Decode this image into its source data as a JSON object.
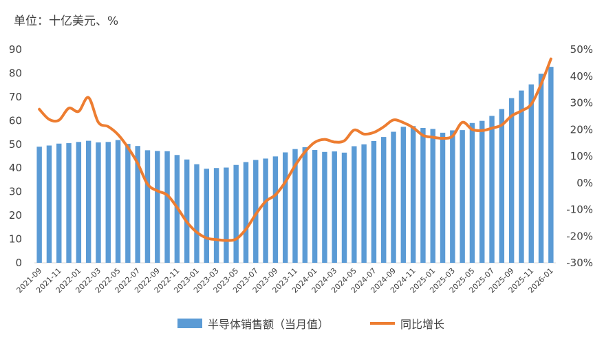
{
  "unit_label": "单位：十亿美元、%",
  "chart_data": {
    "type": "bar+line",
    "categories": [
      "2021-09",
      "2021-10",
      "2021-11",
      "2021-12",
      "2022-01",
      "2022-02",
      "2022-03",
      "2022-04",
      "2022-05",
      "2022-06",
      "2022-07",
      "2022-08",
      "2022-09",
      "2022-10",
      "2022-11",
      "2022-12",
      "2023-01",
      "2023-02",
      "2023-03",
      "2023-04",
      "2023-05",
      "2023-06",
      "2023-07",
      "2023-08",
      "2023-09",
      "2023-10",
      "2023-11",
      "2023-12",
      "2024-01",
      "2024-02",
      "2024-03",
      "2024-04",
      "2024-05",
      "2024-06",
      "2024-07",
      "2024-08",
      "2024-09",
      "2024-10",
      "2024-11",
      "2024-12",
      "2025-01",
      "2025-02",
      "2025-03",
      "2025-04",
      "2025-05",
      "2025-06",
      "2025-07",
      "2025-08",
      "2025-09",
      "2025-10",
      "2025-11",
      "2025-12",
      "2026-01"
    ],
    "x_tick_labels": [
      "2021-09",
      "2021-11",
      "2022-01",
      "2022-03",
      "2022-05",
      "2022-07",
      "2022-09",
      "2022-11",
      "2023-01",
      "2023-03",
      "2023-05",
      "2023-07",
      "2023-09",
      "2023-11",
      "2024-01",
      "2024-03",
      "2024-05",
      "2024-07",
      "2024-09",
      "2024-11",
      "2025-01",
      "2025-03",
      "2025-05",
      "2025-07",
      "2025-09",
      "2025-11",
      "2026-01"
    ],
    "series": [
      {
        "name": "半导体销售额（当月值）",
        "type": "bar",
        "axis": "left",
        "color": "#5b9bd5",
        "values": [
          49.0,
          49.5,
          50.3,
          50.5,
          51.0,
          51.5,
          50.8,
          51.0,
          51.8,
          50.2,
          49.3,
          47.5,
          47.2,
          47.1,
          45.5,
          43.6,
          41.6,
          39.7,
          40.0,
          40.2,
          41.3,
          42.5,
          43.4,
          44.0,
          44.9,
          46.6,
          48.0,
          48.8,
          47.6,
          46.8,
          47.0,
          46.5,
          49.2,
          50.0,
          51.4,
          53.1,
          55.3,
          57.4,
          57.7,
          56.9,
          56.5,
          54.9,
          55.9,
          56.0,
          59.0,
          59.9,
          62.0,
          64.9,
          69.5,
          72.7,
          75.3,
          79.8,
          82.7
        ]
      },
      {
        "name": "同比增长",
        "type": "line",
        "axis": "right",
        "color": "#ed7d31",
        "values": [
          27.6,
          23.8,
          23.5,
          28.0,
          26.8,
          32.0,
          22.7,
          21.1,
          18.1,
          13.3,
          7.3,
          -0.5,
          -3.0,
          -4.6,
          -9.2,
          -14.7,
          -18.5,
          -20.7,
          -21.3,
          -21.6,
          -21.1,
          -17.4,
          -11.8,
          -7.0,
          -4.5,
          0.3,
          6.5,
          11.6,
          15.2,
          16.3,
          15.3,
          15.8,
          19.8,
          18.3,
          18.9,
          21.0,
          23.6,
          22.6,
          20.7,
          17.8,
          17.1,
          16.7,
          17.5,
          22.7,
          20.0,
          19.6,
          20.5,
          21.7,
          25.1,
          27.0,
          29.5,
          37.0,
          46.5
        ]
      }
    ],
    "ylim_left": [
      0,
      90
    ],
    "yticks_left": [
      "0",
      "10",
      "20",
      "30",
      "40",
      "50",
      "60",
      "70",
      "80",
      "90"
    ],
    "ylim_right": [
      -30,
      50
    ],
    "yticks_right": [
      "-30%",
      "-20%",
      "-10%",
      "0%",
      "10%",
      "20%",
      "30%",
      "40%",
      "50%"
    ],
    "grid": false,
    "legend_position": "bottom"
  },
  "legend": {
    "bar_label": "半导体销售额（当月值）",
    "line_label": "同比增长"
  }
}
